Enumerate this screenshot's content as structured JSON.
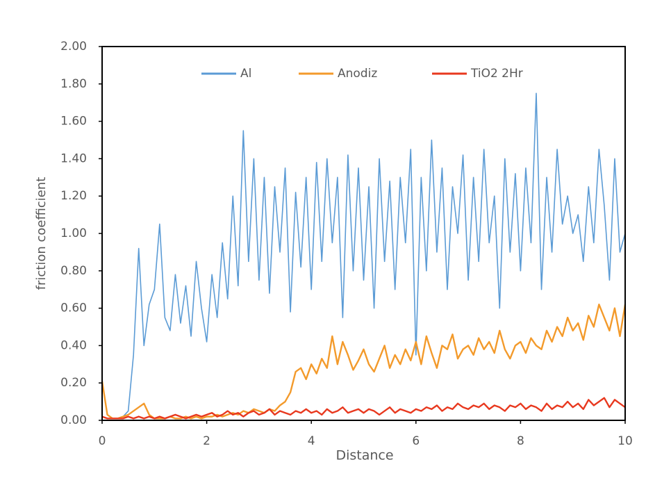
{
  "chart_data": {
    "type": "line",
    "xlabel": "Distance",
    "ylabel": "friction coefficient",
    "xlim": [
      0,
      10
    ],
    "xticks": [
      0,
      2,
      4,
      6,
      8,
      10
    ],
    "ylim": [
      0,
      2
    ],
    "yticks": [
      {
        "value": 0,
        "label": "0.00"
      },
      {
        "value": 0.2,
        "label": "0.20"
      },
      {
        "value": 0.4,
        "label": "0.40"
      },
      {
        "value": 0.6,
        "label": "0.60"
      },
      {
        "value": 0.8,
        "label": "0.80"
      },
      {
        "value": 1,
        "label": "1.00"
      },
      {
        "value": 1.2,
        "label": "1.20"
      },
      {
        "value": 1.4,
        "label": "1.40"
      },
      {
        "value": 1.6,
        "label": "1.60"
      },
      {
        "value": 1.8,
        "label": "1.80"
      },
      {
        "value": 2,
        "label": "2.00"
      }
    ],
    "legend": "top",
    "x": [
      0,
      0.1,
      0.2,
      0.3,
      0.4,
      0.5,
      0.6,
      0.7,
      0.8,
      0.9,
      1,
      1.1,
      1.2,
      1.3,
      1.4,
      1.5,
      1.6,
      1.7,
      1.8,
      1.9,
      2,
      2.1,
      2.2,
      2.3,
      2.4,
      2.5,
      2.6,
      2.7,
      2.8,
      2.9,
      3,
      3.1,
      3.2,
      3.3,
      3.4,
      3.5,
      3.6,
      3.7,
      3.8,
      3.9,
      4,
      4.1,
      4.2,
      4.3,
      4.4,
      4.5,
      4.6,
      4.7,
      4.8,
      4.9,
      5,
      5.1,
      5.2,
      5.3,
      5.4,
      5.5,
      5.6,
      5.7,
      5.8,
      5.9,
      6,
      6.1,
      6.2,
      6.3,
      6.4,
      6.5,
      6.6,
      6.7,
      6.8,
      6.9,
      7,
      7.1,
      7.2,
      7.3,
      7.4,
      7.5,
      7.6,
      7.7,
      7.8,
      7.9,
      8,
      8.1,
      8.2,
      8.3,
      8.4,
      8.5,
      8.6,
      8.7,
      8.8,
      8.9,
      9,
      9.1,
      9.2,
      9.3,
      9.4,
      9.5,
      9.6,
      9.7,
      9.8,
      9.9,
      10
    ],
    "series": [
      {
        "name": "Al",
        "color": "#5b9bd5",
        "values": [
          0.02,
          0.01,
          0.01,
          0.01,
          0.02,
          0.05,
          0.35,
          0.92,
          0.4,
          0.62,
          0.7,
          1.05,
          0.55,
          0.48,
          0.78,
          0.52,
          0.72,
          0.45,
          0.85,
          0.6,
          0.42,
          0.78,
          0.55,
          0.95,
          0.65,
          1.2,
          0.72,
          1.55,
          0.85,
          1.4,
          0.75,
          1.3,
          0.68,
          1.25,
          0.9,
          1.35,
          0.58,
          1.22,
          0.82,
          1.3,
          0.7,
          1.38,
          0.85,
          1.4,
          0.95,
          1.3,
          0.55,
          1.42,
          0.8,
          1.35,
          0.75,
          1.25,
          0.6,
          1.4,
          0.85,
          1.28,
          0.7,
          1.3,
          0.95,
          1.45,
          0.35,
          1.3,
          0.8,
          1.5,
          0.9,
          1.35,
          0.7,
          1.25,
          1.0,
          1.42,
          0.75,
          1.3,
          0.85,
          1.45,
          0.95,
          1.2,
          0.6,
          1.4,
          0.9,
          1.32,
          0.8,
          1.35,
          0.95,
          1.75,
          0.7,
          1.3,
          0.9,
          1.45,
          1.05,
          1.2,
          1.0,
          1.1,
          0.85,
          1.25,
          0.95,
          1.45,
          1.15,
          0.75,
          1.4,
          0.9,
          1.0
        ]
      },
      {
        "name": "Anodiz",
        "color": "#f39a2b",
        "values": [
          0.21,
          0.03,
          0.01,
          0.01,
          0.02,
          0.03,
          0.05,
          0.07,
          0.09,
          0.03,
          0.01,
          0.01,
          0.01,
          0.02,
          0.01,
          0.01,
          0.02,
          0.01,
          0.02,
          0.01,
          0.02,
          0.02,
          0.03,
          0.02,
          0.03,
          0.04,
          0.03,
          0.05,
          0.04,
          0.06,
          0.05,
          0.04,
          0.06,
          0.05,
          0.08,
          0.1,
          0.15,
          0.26,
          0.28,
          0.22,
          0.3,
          0.25,
          0.33,
          0.28,
          0.45,
          0.3,
          0.42,
          0.35,
          0.27,
          0.32,
          0.38,
          0.3,
          0.26,
          0.33,
          0.4,
          0.28,
          0.35,
          0.3,
          0.38,
          0.32,
          0.42,
          0.3,
          0.45,
          0.36,
          0.28,
          0.4,
          0.38,
          0.46,
          0.33,
          0.38,
          0.4,
          0.35,
          0.44,
          0.38,
          0.42,
          0.36,
          0.48,
          0.38,
          0.33,
          0.4,
          0.42,
          0.36,
          0.44,
          0.4,
          0.38,
          0.48,
          0.42,
          0.5,
          0.45,
          0.55,
          0.48,
          0.52,
          0.43,
          0.56,
          0.5,
          0.62,
          0.55,
          0.48,
          0.6,
          0.45,
          0.62
        ]
      },
      {
        "name": "TiO2 2Hr",
        "color": "#e8381e",
        "values": [
          0.02,
          0.01,
          0.01,
          0.01,
          0.01,
          0.02,
          0.01,
          0.02,
          0.01,
          0.02,
          0.01,
          0.02,
          0.01,
          0.02,
          0.03,
          0.02,
          0.01,
          0.02,
          0.03,
          0.02,
          0.03,
          0.04,
          0.02,
          0.03,
          0.05,
          0.03,
          0.04,
          0.02,
          0.04,
          0.05,
          0.03,
          0.04,
          0.06,
          0.03,
          0.05,
          0.04,
          0.03,
          0.05,
          0.04,
          0.06,
          0.04,
          0.05,
          0.03,
          0.06,
          0.04,
          0.05,
          0.07,
          0.04,
          0.05,
          0.06,
          0.04,
          0.06,
          0.05,
          0.03,
          0.05,
          0.07,
          0.04,
          0.06,
          0.05,
          0.04,
          0.06,
          0.05,
          0.07,
          0.06,
          0.08,
          0.05,
          0.07,
          0.06,
          0.09,
          0.07,
          0.06,
          0.08,
          0.07,
          0.09,
          0.06,
          0.08,
          0.07,
          0.05,
          0.08,
          0.07,
          0.09,
          0.06,
          0.08,
          0.07,
          0.05,
          0.09,
          0.06,
          0.08,
          0.07,
          0.1,
          0.07,
          0.09,
          0.06,
          0.11,
          0.08,
          0.1,
          0.12,
          0.07,
          0.11,
          0.09,
          0.07
        ]
      }
    ]
  }
}
